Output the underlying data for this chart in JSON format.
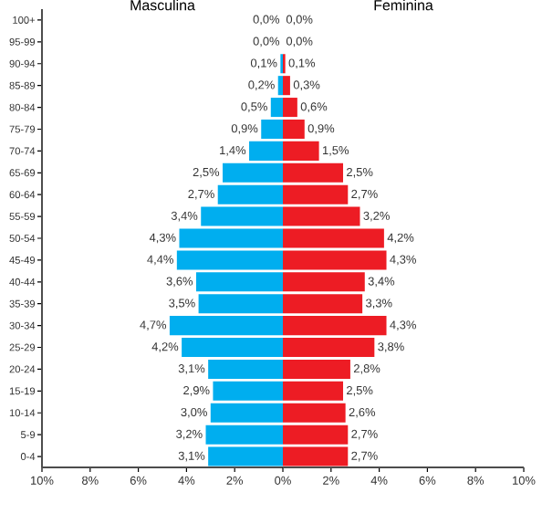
{
  "chart_data": [
    {
      "type": "bar",
      "orientation": "horizontal",
      "title": "Masculina",
      "categories": [
        "100+",
        "95-99",
        "90-94",
        "85-89",
        "80-84",
        "75-79",
        "70-74",
        "65-69",
        "60-64",
        "55-59",
        "50-54",
        "45-49",
        "40-44",
        "35-39",
        "30-34",
        "25-29",
        "20-24",
        "15-19",
        "10-14",
        "5-9",
        "0-4"
      ],
      "values": [
        0.0,
        0.0,
        0.1,
        0.2,
        0.5,
        0.9,
        1.4,
        2.5,
        2.7,
        3.4,
        4.3,
        4.4,
        3.6,
        3.5,
        4.7,
        4.2,
        3.1,
        2.9,
        3.0,
        3.2,
        3.1
      ],
      "value_labels": [
        "0,0%",
        "0,0%",
        "0,1%",
        "0,2%",
        "0,5%",
        "0,9%",
        "1,4%",
        "2,5%",
        "2,7%",
        "3,4%",
        "4,3%",
        "4,4%",
        "3,6%",
        "3,5%",
        "4,7%",
        "4,2%",
        "3,1%",
        "2,9%",
        "3,0%",
        "3,2%",
        "3,1%"
      ],
      "color": "#00aeef",
      "xlim": [
        10,
        0
      ],
      "xticks": [
        {
          "value": 10,
          "label": "10%"
        },
        {
          "value": 8,
          "label": "8%"
        },
        {
          "value": 6,
          "label": "6%"
        },
        {
          "value": 4,
          "label": "4%"
        },
        {
          "value": 2,
          "label": "2%"
        }
      ]
    },
    {
      "type": "bar",
      "orientation": "horizontal",
      "title": "Feminina",
      "categories": [
        null,
        null,
        null,
        null,
        null,
        null,
        null,
        null,
        null,
        null,
        null,
        null,
        null,
        null,
        null,
        null,
        null,
        null,
        null,
        null,
        null
      ],
      "values": [
        0.0,
        0.0,
        0.1,
        0.3,
        0.6,
        0.9,
        1.5,
        2.5,
        2.7,
        3.2,
        4.2,
        4.3,
        3.4,
        3.3,
        4.3,
        3.8,
        2.8,
        2.5,
        2.6,
        2.7,
        2.7
      ],
      "value_labels": [
        "0,0%",
        "0,0%",
        "0,1%",
        "0,3%",
        "0,6%",
        "0,9%",
        "1,5%",
        "2,5%",
        "2,7%",
        "3,2%",
        "4,2%",
        "4,3%",
        "3,4%",
        "3,3%",
        "4,3%",
        "3,8%",
        "2,8%",
        "2,5%",
        "2,6%",
        "2,7%",
        "2,7%"
      ],
      "color": "#ed1c24",
      "xlim": [
        0,
        10
      ],
      "xticks": [
        {
          "value": 0,
          "label": "0%"
        },
        {
          "value": 2,
          "label": "2%"
        },
        {
          "value": 4,
          "label": "4%"
        },
        {
          "value": 6,
          "label": "6%"
        },
        {
          "value": 8,
          "label": "8%"
        },
        {
          "value": 10,
          "label": "10%"
        }
      ],
      "tick_labels": "x"
    }
  ]
}
